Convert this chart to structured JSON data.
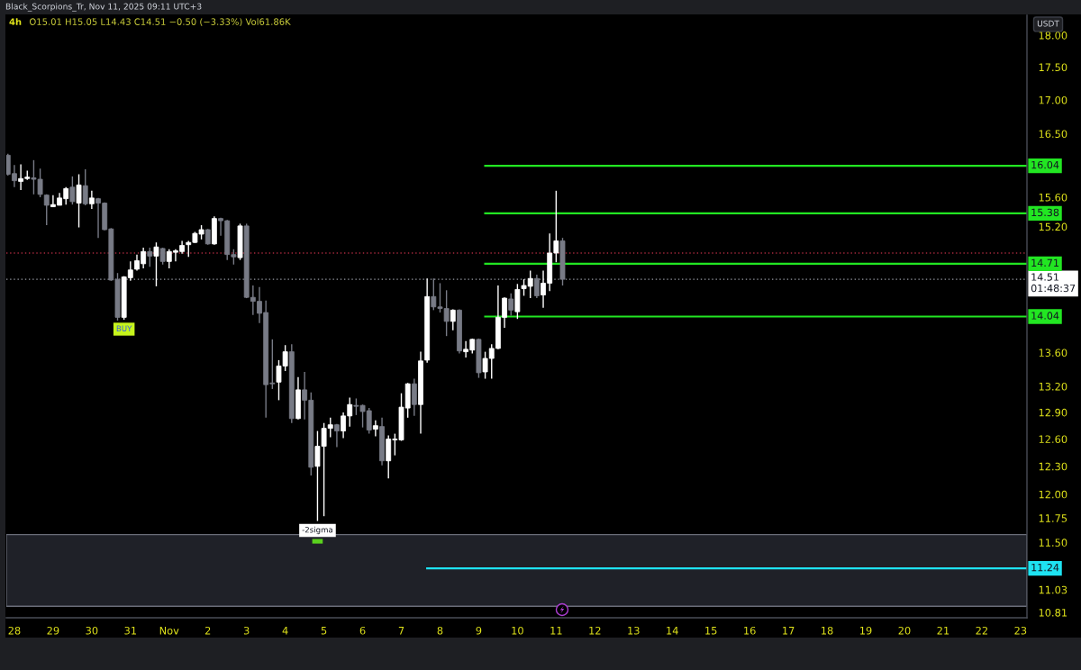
{
  "chart_data": {
    "type": "candlestick",
    "title": "4h",
    "subtitle": "O15.01 H15.05 L14.43 C14.51 −0.50 (−3.33%) Vol61.86K",
    "ylabel": "USDT",
    "log": true,
    "x": [
      "2025-10-27T20:00",
      "2025-10-28T00:00",
      "2025-10-28T04:00",
      "2025-10-28T08:00",
      "2025-10-28T12:00",
      "2025-10-28T16:00",
      "2025-10-28T20:00",
      "2025-10-29T00:00",
      "2025-10-29T04:00",
      "2025-10-29T08:00",
      "2025-10-29T12:00",
      "2025-10-29T16:00",
      "2025-10-29T20:00",
      "2025-10-30T00:00",
      "2025-10-30T04:00",
      "2025-10-30T08:00",
      "2025-10-30T12:00",
      "2025-10-30T16:00",
      "2025-10-30T20:00",
      "2025-10-31T00:00",
      "2025-10-31T04:00",
      "2025-10-31T08:00",
      "2025-10-31T12:00",
      "2025-10-31T16:00",
      "2025-10-31T20:00",
      "2025-11-01T00:00",
      "2025-11-01T04:00",
      "2025-11-01T08:00",
      "2025-11-01T12:00",
      "2025-11-01T16:00",
      "2025-11-01T20:00",
      "2025-11-02T00:00",
      "2025-11-02T04:00",
      "2025-11-02T08:00",
      "2025-11-02T12:00",
      "2025-11-02T16:00",
      "2025-11-02T20:00",
      "2025-11-03T00:00",
      "2025-11-03T04:00",
      "2025-11-03T08:00",
      "2025-11-03T12:00",
      "2025-11-03T16:00",
      "2025-11-03T20:00",
      "2025-11-04T00:00",
      "2025-11-04T04:00",
      "2025-11-04T08:00",
      "2025-11-04T12:00",
      "2025-11-04T16:00",
      "2025-11-04T20:00",
      "2025-11-05T00:00",
      "2025-11-05T04:00",
      "2025-11-05T08:00",
      "2025-11-05T12:00",
      "2025-11-05T16:00",
      "2025-11-05T20:00",
      "2025-11-06T00:00",
      "2025-11-06T04:00",
      "2025-11-06T08:00",
      "2025-11-06T12:00",
      "2025-11-06T16:00",
      "2025-11-06T20:00",
      "2025-11-07T00:00",
      "2025-11-07T04:00",
      "2025-11-07T08:00",
      "2025-11-07T12:00",
      "2025-11-07T16:00",
      "2025-11-07T20:00",
      "2025-11-08T00:00",
      "2025-11-08T04:00",
      "2025-11-08T08:00",
      "2025-11-08T12:00",
      "2025-11-08T16:00",
      "2025-11-08T20:00",
      "2025-11-09T00:00",
      "2025-11-09T04:00",
      "2025-11-09T08:00",
      "2025-11-09T12:00",
      "2025-11-09T16:00",
      "2025-11-09T20:00",
      "2025-11-10T00:00",
      "2025-11-10T04:00",
      "2025-11-10T08:00",
      "2025-11-10T12:00",
      "2025-11-10T16:00",
      "2025-11-10T20:00",
      "2025-11-11T00:00",
      "2025-11-11T04:00"
    ],
    "ohlc": [
      [
        16.19,
        16.21,
        15.9,
        15.92
      ],
      [
        15.93,
        16.05,
        15.74,
        15.83
      ],
      [
        15.82,
        16.06,
        15.7,
        15.86
      ],
      [
        15.86,
        15.97,
        15.84,
        15.88
      ],
      [
        15.87,
        16.12,
        15.64,
        15.85
      ],
      [
        15.85,
        16.0,
        15.6,
        15.64
      ],
      [
        15.63,
        15.64,
        15.22,
        15.49
      ],
      [
        15.47,
        15.63,
        15.47,
        15.5
      ],
      [
        15.49,
        15.66,
        15.49,
        15.59
      ],
      [
        15.58,
        15.74,
        15.5,
        15.72
      ],
      [
        15.74,
        15.89,
        15.5,
        15.54
      ],
      [
        15.52,
        15.92,
        15.19,
        15.77
      ],
      [
        15.76,
        15.99,
        15.49,
        15.51
      ],
      [
        15.51,
        15.69,
        15.44,
        15.59
      ],
      [
        15.58,
        15.59,
        15.05,
        15.52
      ],
      [
        15.52,
        15.53,
        15.15,
        15.16
      ],
      [
        15.17,
        15.18,
        14.49,
        14.5
      ],
      [
        14.51,
        14.59,
        13.99,
        14.03
      ],
      [
        14.03,
        14.55,
        14.0,
        14.54
      ],
      [
        14.53,
        14.74,
        14.49,
        14.63
      ],
      [
        14.64,
        14.83,
        14.62,
        14.75
      ],
      [
        14.71,
        14.92,
        14.65,
        14.87
      ],
      [
        14.87,
        14.92,
        14.67,
        14.81
      ],
      [
        14.81,
        14.99,
        14.42,
        14.93
      ],
      [
        14.91,
        14.92,
        14.7,
        14.74
      ],
      [
        14.74,
        14.9,
        14.65,
        14.87
      ],
      [
        14.86,
        14.9,
        14.74,
        14.88
      ],
      [
        14.87,
        15.01,
        14.84,
        14.95
      ],
      [
        14.96,
        15.01,
        14.8,
        14.99
      ],
      [
        14.99,
        15.13,
        14.98,
        15.11
      ],
      [
        15.1,
        15.22,
        15.03,
        15.16
      ],
      [
        15.16,
        15.17,
        14.96,
        14.97
      ],
      [
        14.97,
        15.34,
        14.96,
        15.31
      ],
      [
        15.31,
        15.32,
        15.08,
        15.28
      ],
      [
        15.28,
        15.29,
        14.76,
        14.83
      ],
      [
        14.83,
        14.9,
        14.7,
        14.8
      ],
      [
        14.79,
        15.24,
        14.76,
        15.21
      ],
      [
        15.21,
        15.24,
        14.27,
        14.28
      ],
      [
        14.28,
        14.43,
        14.06,
        14.23
      ],
      [
        14.23,
        14.41,
        13.96,
        14.08
      ],
      [
        14.09,
        14.24,
        12.84,
        13.22
      ],
      [
        13.24,
        13.76,
        13.17,
        13.23
      ],
      [
        13.25,
        13.51,
        13.04,
        13.44
      ],
      [
        13.44,
        13.69,
        13.38,
        13.61
      ],
      [
        13.61,
        13.7,
        12.78,
        12.83
      ],
      [
        12.83,
        13.31,
        12.82,
        13.16
      ],
      [
        13.16,
        13.37,
        12.82,
        13.04
      ],
      [
        13.04,
        13.13,
        12.2,
        12.29
      ],
      [
        12.3,
        12.69,
        11.72,
        12.52
      ],
      [
        12.52,
        12.78,
        11.77,
        12.72
      ],
      [
        12.72,
        12.84,
        12.62,
        12.76
      ],
      [
        12.76,
        12.77,
        12.51,
        12.69
      ],
      [
        12.69,
        12.9,
        12.61,
        12.86
      ],
      [
        12.86,
        13.07,
        12.74,
        12.99
      ],
      [
        12.98,
        13.06,
        12.87,
        12.97
      ],
      [
        12.98,
        12.99,
        12.73,
        12.91
      ],
      [
        12.92,
        12.95,
        12.66,
        12.7
      ],
      [
        12.71,
        12.81,
        12.63,
        12.75
      ],
      [
        12.74,
        12.84,
        12.31,
        12.36
      ],
      [
        12.36,
        12.64,
        12.17,
        12.6
      ],
      [
        12.59,
        12.66,
        12.42,
        12.6
      ],
      [
        12.59,
        13.12,
        12.58,
        12.96
      ],
      [
        12.95,
        13.24,
        12.84,
        13.23
      ],
      [
        13.23,
        13.29,
        12.86,
        12.99
      ],
      [
        12.99,
        13.61,
        12.66,
        13.5
      ],
      [
        13.51,
        14.52,
        13.48,
        14.29
      ],
      [
        14.29,
        14.52,
        14.12,
        14.16
      ],
      [
        14.16,
        14.46,
        14.09,
        14.14
      ],
      [
        14.14,
        14.37,
        13.8,
        13.98
      ],
      [
        13.98,
        14.13,
        13.87,
        14.12
      ],
      [
        14.12,
        14.13,
        13.59,
        13.62
      ],
      [
        13.61,
        13.74,
        13.54,
        13.64
      ],
      [
        13.63,
        13.77,
        13.59,
        13.76
      ],
      [
        13.76,
        13.77,
        13.3,
        13.36
      ],
      [
        13.37,
        13.61,
        13.29,
        13.53
      ],
      [
        13.53,
        13.7,
        13.29,
        13.65
      ],
      [
        13.65,
        14.43,
        13.64,
        14.03
      ],
      [
        14.03,
        14.28,
        13.9,
        14.27
      ],
      [
        14.26,
        14.33,
        14.05,
        14.12
      ],
      [
        14.1,
        14.45,
        14.01,
        14.38
      ],
      [
        14.39,
        14.51,
        14.3,
        14.43
      ],
      [
        14.42,
        14.62,
        14.27,
        14.52
      ],
      [
        14.52,
        14.57,
        14.27,
        14.3
      ],
      [
        14.31,
        14.62,
        14.15,
        14.46
      ],
      [
        14.46,
        15.11,
        14.36,
        14.85
      ],
      [
        14.85,
        15.69,
        14.73,
        15.01
      ],
      [
        15.01,
        15.05,
        14.43,
        14.51
      ]
    ],
    "colors": [
      "#787b86",
      "#787b86",
      "#ffffff",
      "#ffffff",
      "#787b86",
      "#787b86",
      "#787b86",
      "#ffffff",
      "#ffffff",
      "#ffffff",
      "#787b86",
      "#ffffff",
      "#787b86",
      "#ffffff",
      "#787b86",
      "#787b86",
      "#787b86",
      "#787b86",
      "#ffffff",
      "#ffffff",
      "#ffffff",
      "#ffffff",
      "#787b86",
      "#ffffff",
      "#787b86",
      "#ffffff",
      "#ffffff",
      "#ffffff",
      "#ffffff",
      "#ffffff",
      "#ffffff",
      "#787b86",
      "#ffffff",
      "#787b86",
      "#787b86",
      "#787b86",
      "#ffffff",
      "#787b86",
      "#787b86",
      "#787b86",
      "#787b86",
      "#787b86",
      "#ffffff",
      "#ffffff",
      "#787b86",
      "#ffffff",
      "#787b86",
      "#787b86",
      "#ffffff",
      "#ffffff",
      "#ffffff",
      "#787b86",
      "#ffffff",
      "#ffffff",
      "#787b86",
      "#787b86",
      "#787b86",
      "#ffffff",
      "#787b86",
      "#ffffff",
      "#ffffff",
      "#ffffff",
      "#ffffff",
      "#787b86",
      "#ffffff",
      "#ffffff",
      "#787b86",
      "#787b86",
      "#787b86",
      "#ffffff",
      "#787b86",
      "#ffffff",
      "#ffffff",
      "#787b86",
      "#ffffff",
      "#ffffff",
      "#ffffff",
      "#ffffff",
      "#787b86",
      "#ffffff",
      "#ffffff",
      "#ffffff",
      "#787b86",
      "#ffffff",
      "#ffffff",
      "#ffffff",
      "#787b86"
    ],
    "series": [
      {
        "type": "line",
        "x": [
          "2025-11-09T04:00",
          "2025-11-23T04:00"
        ],
        "values": [
          16.04,
          16.04
        ],
        "color": "#22e622",
        "value_labels": [
          null,
          "16.04"
        ]
      },
      {
        "type": "line",
        "x": [
          "2025-11-09T04:00",
          "2025-11-23T04:00"
        ],
        "values": [
          15.38,
          15.38
        ],
        "color": "#22e622",
        "value_labels": [
          null,
          "15.38"
        ]
      },
      {
        "type": "line",
        "x": [
          "2025-11-09T04:00",
          "2025-11-23T04:00"
        ],
        "values": [
          14.71,
          14.71
        ],
        "color": "#22e622",
        "value_labels": [
          null,
          "14.71"
        ]
      },
      {
        "type": "line",
        "x": [
          "2025-11-09T04:00",
          "2025-11-23T04:00"
        ],
        "values": [
          14.04,
          14.04
        ],
        "color": "#22e622",
        "value_labels": [
          null,
          "14.04"
        ]
      },
      {
        "type": "line",
        "x": [
          "2025-11-07T16:00",
          "2025-11-23T04:00"
        ],
        "values": [
          11.24,
          11.24
        ],
        "color": "#1ee3f2",
        "value_labels": [
          null,
          "11.24"
        ]
      }
    ],
    "ref_lines": [
      {
        "axis": "y",
        "value": 14.85,
        "color": "#a3283c",
        "line_style": "dotted"
      },
      {
        "axis": "y",
        "value": 14.51,
        "label": "14.51\n01:48:37",
        "color": "#9598a1",
        "line_style": "dotted"
      }
    ],
    "bands": [
      {
        "axis": "y",
        "from": 10.87,
        "to": 11.58,
        "color": "#1f2128"
      }
    ],
    "annotations": [
      "Black_Scorpions_Tr, Nov 11, 2025 09:11 UTC+3",
      {
        "text": "BUY",
        "x": "2025-10-30T20:00",
        "y": 14.0
      },
      {
        "text": "-2sigma",
        "x": "2025-11-04T20:00",
        "y": 11.72
      }
    ],
    "xlim": [
      "2025-10-27T19:00",
      "2025-11-23T04:00"
    ],
    "ylim": [
      10.76,
      18.32
    ],
    "xticks": [
      {
        "value": "2025-10-28",
        "label": "28"
      },
      {
        "value": "2025-10-29",
        "label": "29"
      },
      {
        "value": "2025-10-30",
        "label": "30"
      },
      {
        "value": "2025-10-31",
        "label": "31"
      },
      {
        "value": "2025-11-01",
        "label": "Nov"
      },
      {
        "value": "2025-11-02",
        "label": "2"
      },
      {
        "value": "2025-11-03",
        "label": "3"
      },
      {
        "value": "2025-11-04",
        "label": "4"
      },
      {
        "value": "2025-11-05",
        "label": "5"
      },
      {
        "value": "2025-11-06",
        "label": "6"
      },
      {
        "value": "2025-11-07",
        "label": "7"
      },
      {
        "value": "2025-11-08",
        "label": "8"
      },
      {
        "value": "2025-11-09",
        "label": "9"
      },
      {
        "value": "2025-11-10",
        "label": "10"
      },
      {
        "value": "2025-11-11",
        "label": "11"
      },
      {
        "value": "2025-11-12",
        "label": "12"
      },
      {
        "value": "2025-11-13",
        "label": "13"
      },
      {
        "value": "2025-11-14",
        "label": "14"
      },
      {
        "value": "2025-11-15",
        "label": "15"
      },
      {
        "value": "2025-11-16",
        "label": "16"
      },
      {
        "value": "2025-11-17",
        "label": "17"
      },
      {
        "value": "2025-11-18",
        "label": "18"
      },
      {
        "value": "2025-11-19",
        "label": "19"
      },
      {
        "value": "2025-11-20",
        "label": "20"
      },
      {
        "value": "2025-11-21",
        "label": "21"
      },
      {
        "value": "2025-11-22",
        "label": "22"
      },
      {
        "value": "2025-11-23",
        "label": "23"
      }
    ],
    "yticks": [
      {
        "value": 18,
        "label": "18.00"
      },
      {
        "value": 17.5,
        "label": "17.50"
      },
      {
        "value": 17,
        "label": "17.00"
      },
      {
        "value": 16.5,
        "label": "16.50"
      },
      {
        "value": 15.6,
        "label": "15.60"
      },
      {
        "value": 15.2,
        "label": "15.20"
      },
      {
        "value": 13.6,
        "label": "13.60"
      },
      {
        "value": 13.2,
        "label": "13.20"
      },
      {
        "value": 12.9,
        "label": "12.90"
      },
      {
        "value": 12.6,
        "label": "12.60"
      },
      {
        "value": 12.3,
        "label": "12.30"
      },
      {
        "value": 12,
        "label": "12.00"
      },
      {
        "value": 11.75,
        "label": "11.75"
      },
      {
        "value": 11.5,
        "label": "11.50"
      },
      {
        "value": 11.03,
        "label": "11.03"
      },
      {
        "value": 10.81,
        "label": "10.81"
      }
    ]
  }
}
